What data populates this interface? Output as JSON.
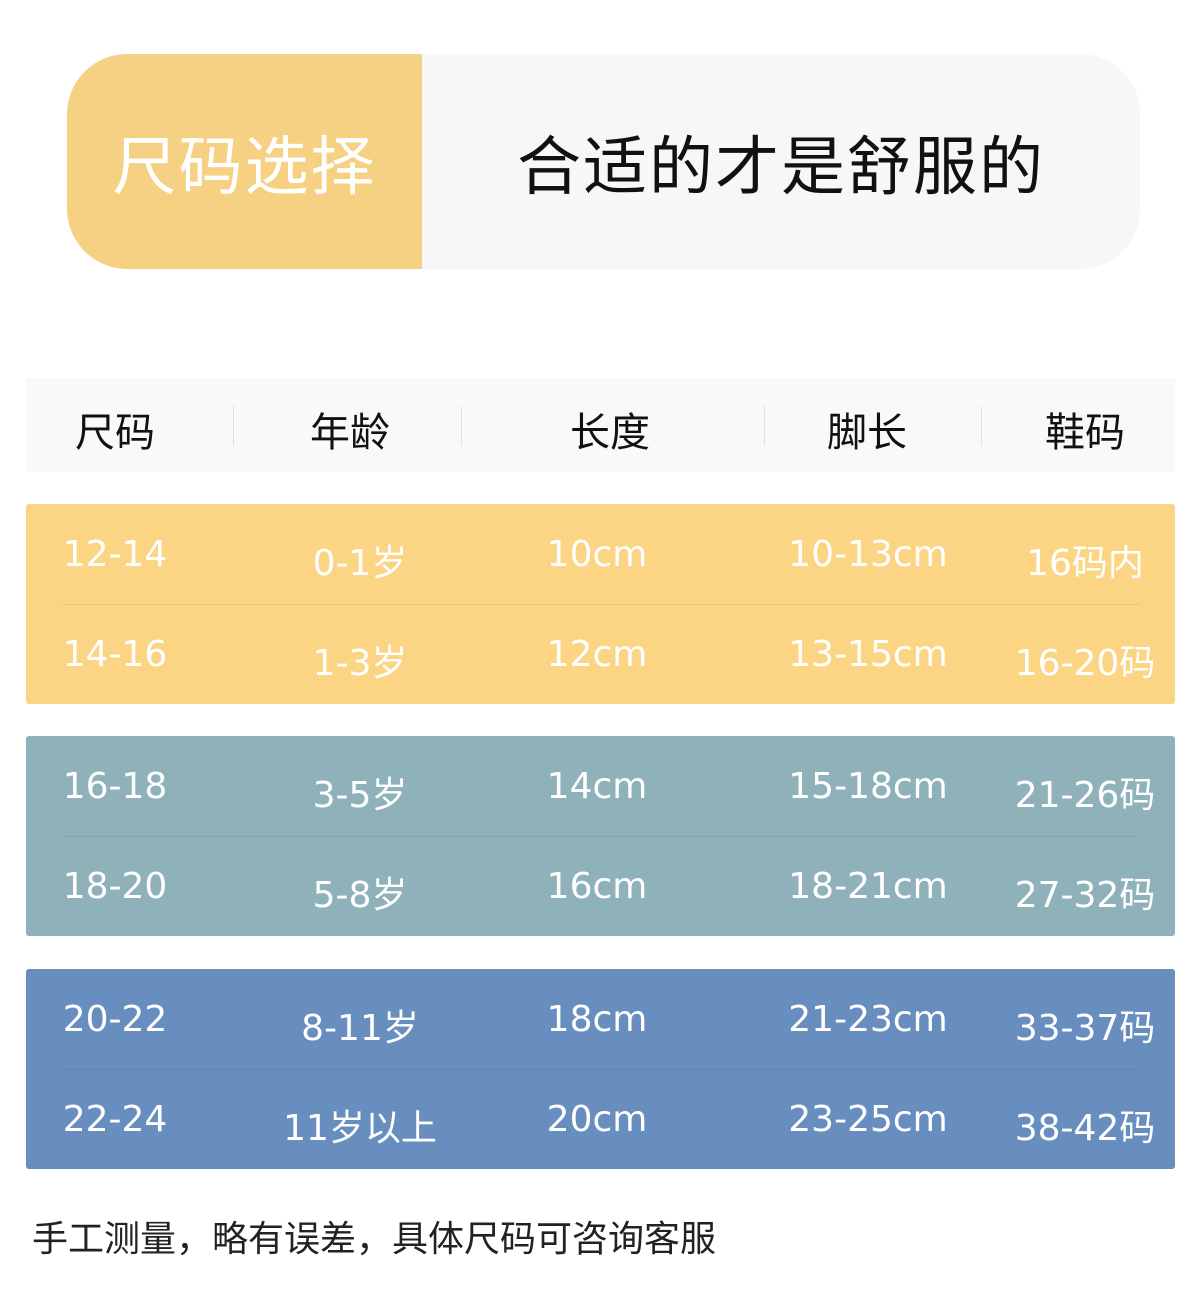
{
  "banner": {
    "left_title": "尺码选择",
    "right_title": "合适的才是舒服的"
  },
  "header": [
    "尺码",
    "年龄",
    "长度",
    "脚长",
    "鞋码"
  ],
  "groups": [
    {
      "color": "#fcd584",
      "rows": [
        [
          "12-14",
          "0-1岁",
          "10cm",
          "10-13cm",
          "16码内"
        ],
        [
          "14-16",
          "1-3岁",
          "12cm",
          "13-15cm",
          "16-20码"
        ]
      ]
    },
    {
      "color": "#8fb1ba",
      "rows": [
        [
          "16-18",
          "3-5岁",
          "14cm",
          "15-18cm",
          "21-26码"
        ],
        [
          "18-20",
          "5-8岁",
          "16cm",
          "18-21cm",
          "27-32码"
        ]
      ]
    },
    {
      "color": "#678ebe",
      "rows": [
        [
          "20-22",
          "8-11岁",
          "18cm",
          "21-23cm",
          "33-37码"
        ],
        [
          "22-24",
          "11岁以上",
          "20cm",
          "23-25cm",
          "38-42码"
        ]
      ]
    }
  ],
  "footer": "手工测量，略有误差，具体尺码可咨询客服"
}
